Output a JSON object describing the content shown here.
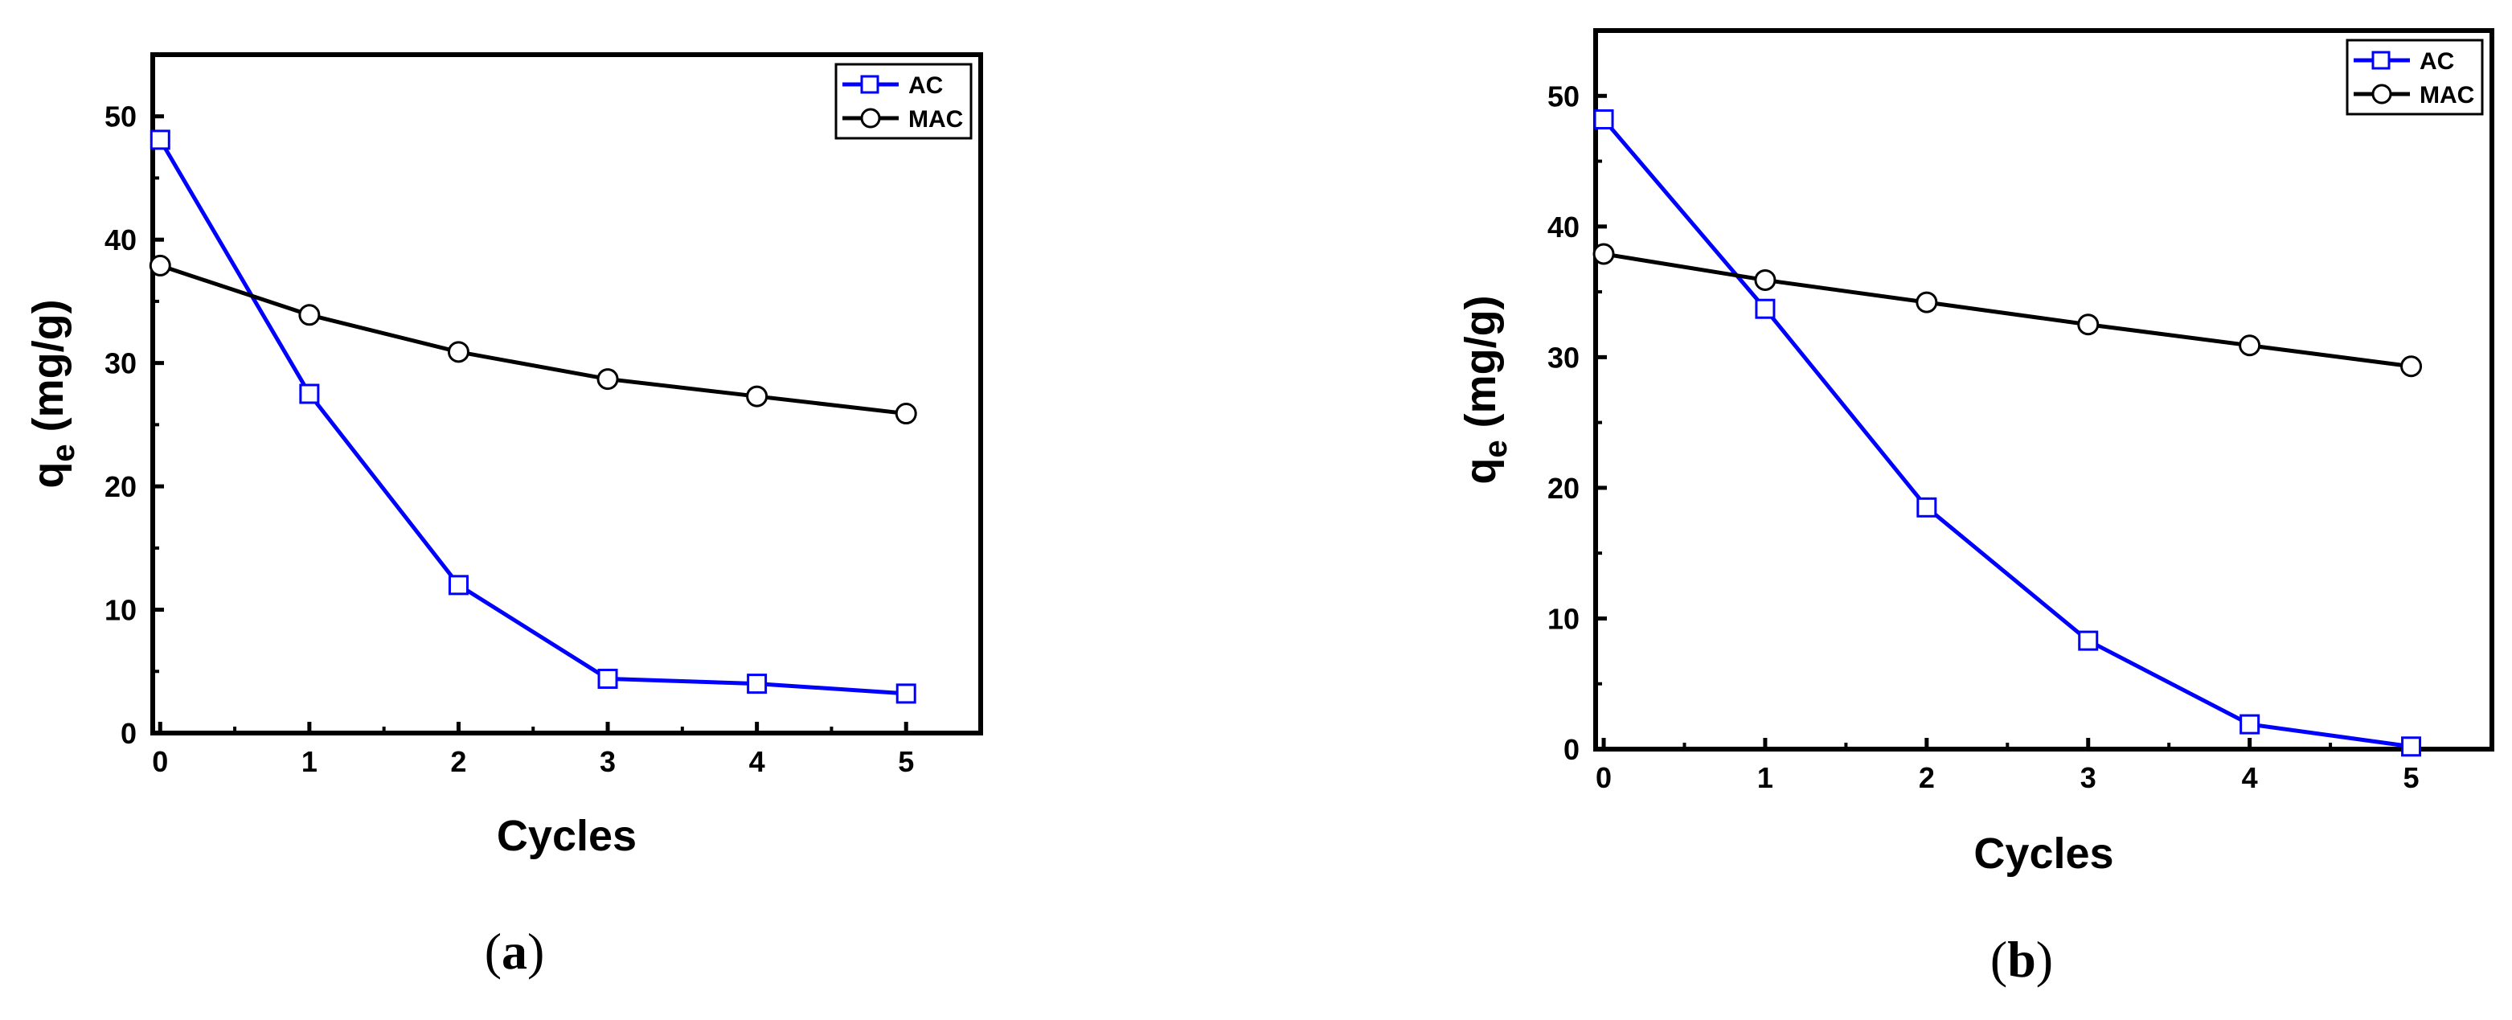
{
  "charts": [
    {
      "caption_letter": "a",
      "chart_data": {
        "type": "line",
        "xlabel": "Cycles",
        "ylabel_main": "q",
        "ylabel_sub": "e",
        "ylabel_unit": " (mg/g)",
        "xlim": [
          -0.05,
          5.5
        ],
        "ylim": [
          0,
          55
        ],
        "x": [
          0,
          1,
          2,
          3,
          4,
          5
        ],
        "xticks": [
          0,
          1,
          2,
          3,
          4,
          5
        ],
        "yticks": [
          0,
          10,
          20,
          30,
          40,
          50
        ],
        "legend_position": "top-right",
        "series": [
          {
            "name": "AC",
            "color": "#0000ff",
            "marker": "square",
            "values": [
              48.1,
              27.5,
              12.0,
              4.4,
              4.0,
              3.2
            ]
          },
          {
            "name": "MAC",
            "color": "#000000",
            "marker": "circle",
            "values": [
              37.9,
              33.9,
              30.9,
              28.7,
              27.3,
              25.9
            ]
          }
        ]
      }
    },
    {
      "caption_letter": "b",
      "chart_data": {
        "type": "line",
        "xlabel": "Cycles",
        "ylabel_main": "q",
        "ylabel_sub": "e",
        "ylabel_unit": " (mg/g)",
        "xlim": [
          -0.05,
          5.5
        ],
        "ylim": [
          0,
          55
        ],
        "x": [
          0,
          1,
          2,
          3,
          4,
          5
        ],
        "xticks": [
          0,
          1,
          2,
          3,
          4,
          5
        ],
        "yticks": [
          0,
          10,
          20,
          30,
          40,
          50
        ],
        "legend_position": "top-right",
        "series": [
          {
            "name": "AC",
            "color": "#0000ff",
            "marker": "square",
            "values": [
              48.2,
              33.7,
              18.5,
              8.3,
              1.9,
              0.2
            ]
          },
          {
            "name": "MAC",
            "color": "#000000",
            "marker": "circle",
            "values": [
              37.9,
              35.9,
              34.2,
              32.5,
              30.9,
              29.3
            ]
          }
        ]
      }
    }
  ]
}
